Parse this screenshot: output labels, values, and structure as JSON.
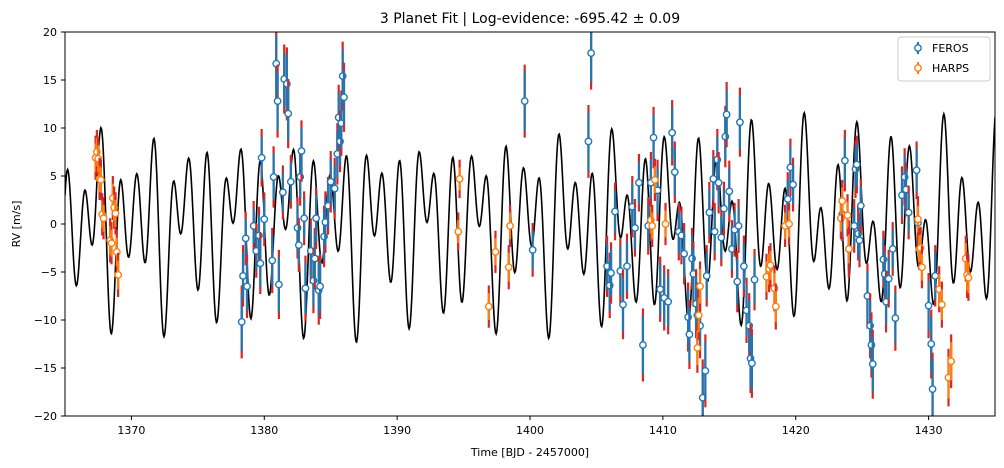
{
  "chart_data": {
    "type": "scatter",
    "title": "3 Planet Fit | Log-evidence: -695.42 ± 0.09",
    "xlabel": "Time [BJD - 2457000]",
    "ylabel": "RV [m/s]",
    "xlim": [
      1365,
      1435
    ],
    "ylim": [
      -20,
      20
    ],
    "xticks": [
      1370,
      1380,
      1390,
      1400,
      1410,
      1420,
      1430
    ],
    "yticks": [
      -20,
      -15,
      -10,
      -5,
      0,
      5,
      10,
      15,
      20
    ],
    "legend_position": "top-right",
    "grid": false,
    "model": {
      "color": "#000000",
      "components": [
        {
          "amplitude": 6.0,
          "period": 1.32,
          "phase": 0.3
        },
        {
          "amplitude": 3.6,
          "period": 2.05,
          "phase": 1.1
        },
        {
          "amplitude": 2.8,
          "period": 3.58,
          "phase": 2.3
        }
      ]
    },
    "series": [
      {
        "name": "FEROS",
        "color": "#1f77b4",
        "jitter_color": "#d62728",
        "points": [
          [
            1378.3,
            -10.2,
            3.0
          ],
          [
            1378.4,
            -5.4,
            2.4
          ],
          [
            1378.6,
            -1.5,
            2.0
          ],
          [
            1378.7,
            -6.5,
            2.5
          ],
          [
            1379.2,
            -0.2,
            1.8
          ],
          [
            1379.4,
            -2.8,
            2.0
          ],
          [
            1379.6,
            -1.2,
            2.2
          ],
          [
            1379.7,
            -4.1,
            2.4
          ],
          [
            1379.8,
            6.9,
            2.2
          ],
          [
            1380.0,
            0.5,
            2.0
          ],
          [
            1380.6,
            -3.8,
            2.6
          ],
          [
            1380.7,
            4.9,
            2.4
          ],
          [
            1380.9,
            16.7,
            3.0
          ],
          [
            1381.0,
            12.8,
            3.0
          ],
          [
            1381.1,
            -6.3,
            2.8
          ],
          [
            1381.4,
            3.3,
            2.0
          ],
          [
            1381.5,
            15.1,
            2.8
          ],
          [
            1381.7,
            14.6,
            3.0
          ],
          [
            1381.8,
            11.5,
            2.8
          ],
          [
            1382.0,
            4.4,
            2.0
          ],
          [
            1382.5,
            -0.4,
            2.4
          ],
          [
            1382.6,
            -2.2,
            2.0
          ],
          [
            1382.7,
            4.9,
            2.2
          ],
          [
            1382.8,
            7.6,
            2.4
          ],
          [
            1383.0,
            0.6,
            2.0
          ],
          [
            1383.1,
            -6.7,
            2.6
          ],
          [
            1383.5,
            -2.8,
            2.6
          ],
          [
            1383.7,
            -5.9,
            2.6
          ],
          [
            1383.8,
            -3.6,
            2.4
          ],
          [
            1383.9,
            0.6,
            2.4
          ],
          [
            1384.1,
            -6.9,
            2.8
          ],
          [
            1384.2,
            -6.5,
            2.6
          ],
          [
            1384.5,
            -1.3,
            2.4
          ],
          [
            1384.6,
            0.2,
            2.4
          ],
          [
            1384.8,
            1.9,
            2.2
          ],
          [
            1385.0,
            4.4,
            2.4
          ],
          [
            1385.3,
            3.7,
            2.4
          ],
          [
            1385.5,
            7.3,
            2.4
          ],
          [
            1385.6,
            11.1,
            2.6
          ],
          [
            1385.7,
            8.6,
            2.4
          ],
          [
            1385.8,
            10.5,
            2.6
          ],
          [
            1385.9,
            15.4,
            2.8
          ],
          [
            1386.0,
            13.2,
            2.8
          ],
          [
            1399.6,
            12.8,
            3.0
          ],
          [
            1400.2,
            -2.7,
            2.0
          ],
          [
            1404.4,
            8.6,
            3.0
          ],
          [
            1404.6,
            17.8,
            3.0
          ],
          [
            1405.8,
            -4.4,
            2.4
          ],
          [
            1406.0,
            -6.4,
            2.6
          ],
          [
            1406.1,
            -5.1,
            2.4
          ],
          [
            1406.4,
            1.3,
            2.2
          ],
          [
            1406.8,
            -4.9,
            2.6
          ],
          [
            1407.0,
            -8.4,
            2.8
          ],
          [
            1407.3,
            -4.4,
            2.6
          ],
          [
            1407.7,
            1.8,
            2.4
          ],
          [
            1407.9,
            -0.4,
            2.2
          ],
          [
            1408.2,
            4.3,
            2.2
          ],
          [
            1408.5,
            -12.6,
            3.0
          ],
          [
            1408.9,
            -0.2,
            2.2
          ],
          [
            1409.1,
            4.3,
            2.4
          ],
          [
            1409.3,
            9.0,
            2.4
          ],
          [
            1409.6,
            3.5,
            2.4
          ],
          [
            1409.8,
            -6.8,
            2.6
          ],
          [
            1410.1,
            -7.7,
            2.6
          ],
          [
            1410.4,
            -8.1,
            2.6
          ],
          [
            1410.7,
            9.5,
            2.6
          ],
          [
            1410.9,
            5.4,
            2.4
          ],
          [
            1411.2,
            -0.8,
            2.2
          ],
          [
            1411.4,
            -1.2,
            2.2
          ],
          [
            1411.6,
            -3.1,
            2.4
          ],
          [
            1411.9,
            -9.7,
            2.8
          ],
          [
            1412.0,
            -11.5,
            2.8
          ],
          [
            1412.2,
            -3.6,
            2.4
          ],
          [
            1412.3,
            -5.2,
            2.6
          ],
          [
            1412.5,
            -8.3,
            2.8
          ],
          [
            1412.6,
            -9.5,
            2.6
          ],
          [
            1412.8,
            -10.6,
            2.6
          ],
          [
            1413.0,
            -18.1,
            3.2
          ],
          [
            1413.2,
            -15.3,
            3.0
          ],
          [
            1413.3,
            -5.4,
            2.4
          ],
          [
            1413.5,
            1.2,
            2.4
          ],
          [
            1413.8,
            4.7,
            2.2
          ],
          [
            1413.9,
            -0.8,
            2.2
          ],
          [
            1414.1,
            6.7,
            2.4
          ],
          [
            1414.2,
            4.3,
            2.4
          ],
          [
            1414.4,
            -1.4,
            2.2
          ],
          [
            1414.6,
            1.6,
            2.0
          ],
          [
            1414.7,
            9.1,
            2.4
          ],
          [
            1414.8,
            11.4,
            2.6
          ],
          [
            1415.0,
            3.4,
            2.4
          ],
          [
            1415.2,
            -2.6,
            2.2
          ],
          [
            1415.4,
            -0.6,
            2.0
          ],
          [
            1415.6,
            -6.0,
            2.4
          ],
          [
            1415.7,
            -0.2,
            2.0
          ],
          [
            1415.8,
            10.6,
            2.8
          ],
          [
            1416.1,
            -4.4,
            2.4
          ],
          [
            1416.3,
            -9.0,
            2.6
          ],
          [
            1416.5,
            -10.6,
            2.6
          ],
          [
            1416.6,
            -14.0,
            2.8
          ],
          [
            1416.7,
            -14.5,
            2.8
          ],
          [
            1416.9,
            -5.8,
            2.4
          ],
          [
            1419.4,
            2.6,
            2.0
          ],
          [
            1419.6,
            5.9,
            2.2
          ],
          [
            1419.8,
            4.1,
            2.0
          ],
          [
            1423.5,
            1.0,
            2.0
          ],
          [
            1423.7,
            6.6,
            2.4
          ],
          [
            1424.0,
            -2.6,
            2.2
          ],
          [
            1424.4,
            -0.2,
            2.0
          ],
          [
            1424.5,
            5.7,
            2.2
          ],
          [
            1424.6,
            6.2,
            2.2
          ],
          [
            1424.7,
            -1.0,
            2.0
          ],
          [
            1424.8,
            -1.7,
            2.0
          ],
          [
            1424.9,
            1.9,
            2.0
          ],
          [
            1425.4,
            -7.5,
            2.6
          ],
          [
            1425.6,
            -10.6,
            2.6
          ],
          [
            1425.7,
            -12.6,
            2.6
          ],
          [
            1425.8,
            -14.6,
            2.8
          ],
          [
            1426.6,
            -3.7,
            2.2
          ],
          [
            1426.7,
            -5.2,
            2.2
          ],
          [
            1426.8,
            -8.1,
            2.4
          ],
          [
            1427.0,
            -5.7,
            2.2
          ],
          [
            1427.3,
            -2.6,
            2.0
          ],
          [
            1427.5,
            -9.8,
            2.6
          ],
          [
            1428.0,
            3.0,
            2.2
          ],
          [
            1428.2,
            4.9,
            2.2
          ],
          [
            1428.3,
            3.6,
            2.0
          ],
          [
            1428.5,
            1.2,
            2.0
          ],
          [
            1429.1,
            5.6,
            2.2
          ],
          [
            1429.2,
            0.1,
            2.0
          ],
          [
            1430.0,
            -8.5,
            2.6
          ],
          [
            1430.2,
            -12.5,
            2.8
          ],
          [
            1430.3,
            -17.2,
            3.0
          ],
          [
            1430.5,
            -5.4,
            2.4
          ]
        ]
      },
      {
        "name": "HARPS",
        "color": "#ff7f0e",
        "jitter_color": "#d62728",
        "points": [
          [
            1367.3,
            6.9,
            1.5
          ],
          [
            1367.4,
            7.5,
            1.5
          ],
          [
            1367.5,
            6.8,
            1.4
          ],
          [
            1367.6,
            4.7,
            1.4
          ],
          [
            1367.7,
            4.6,
            1.3
          ],
          [
            1367.8,
            1.0,
            1.4
          ],
          [
            1367.9,
            0.6,
            1.4
          ],
          [
            1368.4,
            -1.7,
            1.5
          ],
          [
            1368.5,
            -2.0,
            1.4
          ],
          [
            1368.6,
            2.7,
            1.5
          ],
          [
            1368.7,
            1.7,
            1.4
          ],
          [
            1368.8,
            1.1,
            1.4
          ],
          [
            1368.9,
            -2.9,
            1.5
          ],
          [
            1369.0,
            -5.3,
            1.5
          ],
          [
            1394.6,
            -0.8,
            1.2
          ],
          [
            1394.7,
            4.7,
            1.2
          ],
          [
            1396.9,
            -8.6,
            1.4
          ],
          [
            1397.4,
            -2.9,
            1.4
          ],
          [
            1398.4,
            -4.5,
            1.5
          ],
          [
            1398.5,
            -0.2,
            1.4
          ],
          [
            1409.1,
            0.4,
            1.4
          ],
          [
            1409.2,
            -0.2,
            1.4
          ],
          [
            1409.4,
            4.6,
            1.4
          ],
          [
            1410.2,
            0.0,
            1.4
          ],
          [
            1412.6,
            -12.9,
            1.8
          ],
          [
            1412.7,
            -9.5,
            1.8
          ],
          [
            1412.8,
            -6.5,
            1.8
          ],
          [
            1417.8,
            -5.5,
            1.6
          ],
          [
            1418.0,
            -4.7,
            1.6
          ],
          [
            1418.1,
            -4.3,
            1.5
          ],
          [
            1418.4,
            -6.7,
            1.6
          ],
          [
            1418.5,
            -8.6,
            1.6
          ],
          [
            1419.2,
            -0.2,
            1.4
          ],
          [
            1419.5,
            0.0,
            1.4
          ],
          [
            1423.4,
            0.6,
            1.4
          ],
          [
            1423.5,
            2.4,
            1.4
          ],
          [
            1423.9,
            0.9,
            1.4
          ],
          [
            1424.0,
            -2.6,
            1.5
          ],
          [
            1429.2,
            0.5,
            1.4
          ],
          [
            1429.3,
            -2.6,
            1.4
          ],
          [
            1429.4,
            -2.5,
            1.4
          ],
          [
            1429.5,
            -4.5,
            1.4
          ],
          [
            1430.8,
            -6.8,
            1.6
          ],
          [
            1431.0,
            -8.4,
            1.6
          ],
          [
            1431.5,
            -16.0,
            2.2
          ],
          [
            1431.7,
            -14.3,
            2.0
          ],
          [
            1432.8,
            -3.6,
            1.6
          ],
          [
            1432.9,
            -5.3,
            1.6
          ],
          [
            1433.0,
            -5.6,
            1.6
          ]
        ]
      }
    ]
  }
}
